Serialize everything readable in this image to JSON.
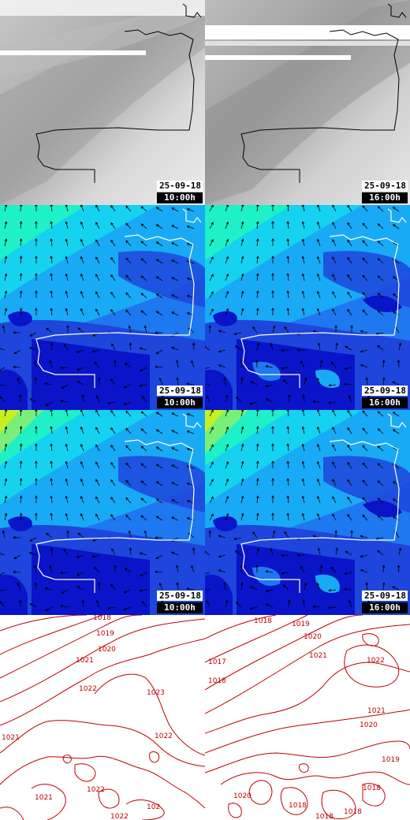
{
  "panels": [
    {
      "row": "satellite",
      "date": "25-09-18",
      "time": "10:00h"
    },
    {
      "row": "satellite",
      "date": "25-09-18",
      "time": "16:00h"
    },
    {
      "row": "wind-a",
      "date": "25-09-18",
      "time": "10:00h"
    },
    {
      "row": "wind-a",
      "date": "25-09-18",
      "time": "16:00h"
    },
    {
      "row": "wind-b",
      "date": "25-09-18",
      "time": "10:00h"
    },
    {
      "row": "wind-b",
      "date": "25-09-18",
      "time": "16:00h"
    }
  ],
  "pressure": {
    "left_labels": [
      "1018",
      "1019",
      "1020",
      "1021",
      "1022",
      "1023",
      "1021",
      "1022",
      "1022",
      "1021",
      "102",
      "1022"
    ],
    "right_labels": [
      "1018",
      "1017",
      "1018",
      "1019",
      "1020",
      "1021",
      "1022",
      "1021",
      "1020",
      "1019",
      "1018",
      "1020",
      "1018",
      "1018",
      "1018"
    ]
  },
  "colors": {
    "wind_scale": [
      "#0a14c8",
      "#1e46dc",
      "#1e78f0",
      "#19aaf5",
      "#14d2f0",
      "#1ef0c8",
      "#78f078",
      "#c8f01e"
    ],
    "isobar": "#c00000"
  }
}
